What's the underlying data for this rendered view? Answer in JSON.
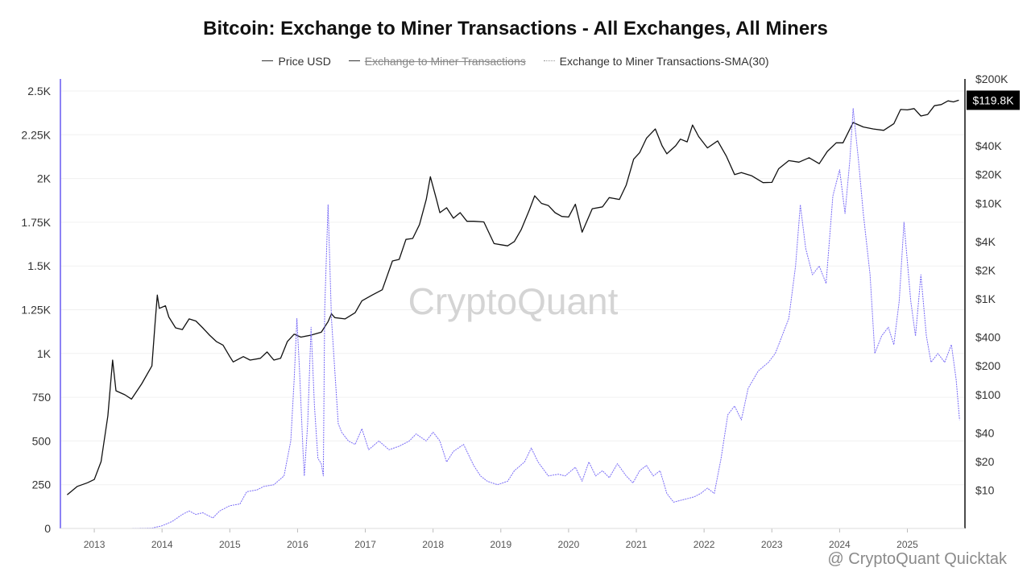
{
  "chart_data": {
    "type": "line",
    "title": "Bitcoin: Exchange to Miner Transactions - All Exchanges, All Miners",
    "legend_position": "top-center",
    "grid": true,
    "series": [
      {
        "name": "Price USD",
        "axis": "right",
        "color": "#111111",
        "visible": true,
        "points": [
          [
            2012.6,
            9
          ],
          [
            2012.75,
            11
          ],
          [
            2012.9,
            12
          ],
          [
            2013.0,
            13
          ],
          [
            2013.1,
            20
          ],
          [
            2013.2,
            60
          ],
          [
            2013.27,
            230
          ],
          [
            2013.32,
            110
          ],
          [
            2013.45,
            100
          ],
          [
            2013.55,
            90
          ],
          [
            2013.7,
            130
          ],
          [
            2013.85,
            200
          ],
          [
            2013.9,
            600
          ],
          [
            2013.93,
            1100
          ],
          [
            2013.96,
            800
          ],
          [
            2014.05,
            850
          ],
          [
            2014.1,
            650
          ],
          [
            2014.2,
            500
          ],
          [
            2014.3,
            480
          ],
          [
            2014.4,
            620
          ],
          [
            2014.5,
            590
          ],
          [
            2014.6,
            500
          ],
          [
            2014.7,
            420
          ],
          [
            2014.8,
            360
          ],
          [
            2014.9,
            330
          ],
          [
            2015.0,
            250
          ],
          [
            2015.05,
            220
          ],
          [
            2015.2,
            250
          ],
          [
            2015.3,
            230
          ],
          [
            2015.45,
            240
          ],
          [
            2015.55,
            280
          ],
          [
            2015.65,
            230
          ],
          [
            2015.75,
            240
          ],
          [
            2015.85,
            360
          ],
          [
            2015.95,
            430
          ],
          [
            2016.05,
            400
          ],
          [
            2016.2,
            420
          ],
          [
            2016.35,
            450
          ],
          [
            2016.45,
            580
          ],
          [
            2016.5,
            700
          ],
          [
            2016.55,
            640
          ],
          [
            2016.7,
            620
          ],
          [
            2016.85,
            720
          ],
          [
            2016.95,
            960
          ],
          [
            2017.1,
            1100
          ],
          [
            2017.25,
            1250
          ],
          [
            2017.4,
            2500
          ],
          [
            2017.5,
            2600
          ],
          [
            2017.6,
            4200
          ],
          [
            2017.7,
            4300
          ],
          [
            2017.8,
            6000
          ],
          [
            2017.9,
            11000
          ],
          [
            2017.96,
            19000
          ],
          [
            2018.05,
            11000
          ],
          [
            2018.1,
            8000
          ],
          [
            2018.2,
            9000
          ],
          [
            2018.3,
            7000
          ],
          [
            2018.4,
            8000
          ],
          [
            2018.5,
            6500
          ],
          [
            2018.6,
            6500
          ],
          [
            2018.75,
            6400
          ],
          [
            2018.9,
            3800
          ],
          [
            2019.0,
            3700
          ],
          [
            2019.1,
            3600
          ],
          [
            2019.2,
            4000
          ],
          [
            2019.3,
            5300
          ],
          [
            2019.42,
            8500
          ],
          [
            2019.5,
            12000
          ],
          [
            2019.6,
            10000
          ],
          [
            2019.7,
            9500
          ],
          [
            2019.8,
            8000
          ],
          [
            2019.9,
            7300
          ],
          [
            2020.0,
            7200
          ],
          [
            2020.1,
            9800
          ],
          [
            2020.2,
            5000
          ],
          [
            2020.35,
            8800
          ],
          [
            2020.5,
            9200
          ],
          [
            2020.6,
            11500
          ],
          [
            2020.75,
            11000
          ],
          [
            2020.85,
            15500
          ],
          [
            2020.96,
            29000
          ],
          [
            2021.05,
            34000
          ],
          [
            2021.15,
            48000
          ],
          [
            2021.28,
            60000
          ],
          [
            2021.38,
            40000
          ],
          [
            2021.45,
            33000
          ],
          [
            2021.58,
            40000
          ],
          [
            2021.65,
            47000
          ],
          [
            2021.75,
            44000
          ],
          [
            2021.83,
            66000
          ],
          [
            2021.92,
            50000
          ],
          [
            2022.05,
            38000
          ],
          [
            2022.2,
            45000
          ],
          [
            2022.33,
            31000
          ],
          [
            2022.45,
            20000
          ],
          [
            2022.55,
            21000
          ],
          [
            2022.7,
            19500
          ],
          [
            2022.87,
            16500
          ],
          [
            2023.0,
            16600
          ],
          [
            2023.1,
            23000
          ],
          [
            2023.25,
            28000
          ],
          [
            2023.4,
            27000
          ],
          [
            2023.55,
            30000
          ],
          [
            2023.7,
            26000
          ],
          [
            2023.82,
            35000
          ],
          [
            2023.95,
            43000
          ],
          [
            2024.05,
            43000
          ],
          [
            2024.2,
            70000
          ],
          [
            2024.35,
            63000
          ],
          [
            2024.5,
            60000
          ],
          [
            2024.65,
            58000
          ],
          [
            2024.8,
            68000
          ],
          [
            2024.9,
            96000
          ],
          [
            2025.0,
            95000
          ],
          [
            2025.1,
            98000
          ],
          [
            2025.2,
            82000
          ],
          [
            2025.3,
            85000
          ],
          [
            2025.4,
            105000
          ],
          [
            2025.5,
            108000
          ],
          [
            2025.6,
            118000
          ],
          [
            2025.68,
            115000
          ],
          [
            2025.76,
            119800
          ]
        ]
      },
      {
        "name": "Exchange to Miner Transactions",
        "axis": "left",
        "color": "#444444",
        "visible": false,
        "points": []
      },
      {
        "name": "Exchange to Miner Transactions-SMA(30)",
        "axis": "left",
        "color": "#7b6ef6",
        "visible": true,
        "points": [
          [
            2012.6,
            0
          ],
          [
            2013.0,
            0
          ],
          [
            2013.5,
            0
          ],
          [
            2013.85,
            2
          ],
          [
            2014.0,
            15
          ],
          [
            2014.15,
            40
          ],
          [
            2014.3,
            80
          ],
          [
            2014.4,
            100
          ],
          [
            2014.5,
            80
          ],
          [
            2014.6,
            90
          ],
          [
            2014.75,
            60
          ],
          [
            2014.85,
            100
          ],
          [
            2015.0,
            130
          ],
          [
            2015.15,
            140
          ],
          [
            2015.25,
            210
          ],
          [
            2015.4,
            220
          ],
          [
            2015.5,
            240
          ],
          [
            2015.65,
            250
          ],
          [
            2015.8,
            300
          ],
          [
            2015.9,
            500
          ],
          [
            2015.95,
            850
          ],
          [
            2015.99,
            1200
          ],
          [
            2016.03,
            900
          ],
          [
            2016.08,
            450
          ],
          [
            2016.1,
            300
          ],
          [
            2016.15,
            600
          ],
          [
            2016.2,
            1150
          ],
          [
            2016.25,
            700
          ],
          [
            2016.3,
            400
          ],
          [
            2016.35,
            370
          ],
          [
            2016.38,
            300
          ],
          [
            2016.4,
            1250
          ],
          [
            2016.45,
            1850
          ],
          [
            2016.5,
            1200
          ],
          [
            2016.55,
            900
          ],
          [
            2016.6,
            600
          ],
          [
            2016.65,
            550
          ],
          [
            2016.75,
            500
          ],
          [
            2016.85,
            480
          ],
          [
            2016.95,
            570
          ],
          [
            2017.05,
            450
          ],
          [
            2017.2,
            500
          ],
          [
            2017.35,
            450
          ],
          [
            2017.5,
            470
          ],
          [
            2017.65,
            500
          ],
          [
            2017.75,
            540
          ],
          [
            2017.9,
            500
          ],
          [
            2018.0,
            550
          ],
          [
            2018.1,
            500
          ],
          [
            2018.2,
            380
          ],
          [
            2018.3,
            440
          ],
          [
            2018.45,
            480
          ],
          [
            2018.6,
            360
          ],
          [
            2018.7,
            300
          ],
          [
            2018.8,
            270
          ],
          [
            2018.95,
            250
          ],
          [
            2019.1,
            270
          ],
          [
            2019.2,
            330
          ],
          [
            2019.35,
            380
          ],
          [
            2019.45,
            460
          ],
          [
            2019.55,
            380
          ],
          [
            2019.7,
            300
          ],
          [
            2019.85,
            310
          ],
          [
            2019.95,
            300
          ],
          [
            2020.1,
            350
          ],
          [
            2020.2,
            270
          ],
          [
            2020.3,
            380
          ],
          [
            2020.4,
            300
          ],
          [
            2020.5,
            330
          ],
          [
            2020.6,
            290
          ],
          [
            2020.72,
            370
          ],
          [
            2020.85,
            300
          ],
          [
            2020.95,
            260
          ],
          [
            2021.05,
            330
          ],
          [
            2021.15,
            360
          ],
          [
            2021.25,
            300
          ],
          [
            2021.35,
            330
          ],
          [
            2021.45,
            200
          ],
          [
            2021.55,
            150
          ],
          [
            2021.65,
            160
          ],
          [
            2021.75,
            170
          ],
          [
            2021.85,
            180
          ],
          [
            2021.95,
            200
          ],
          [
            2022.05,
            230
          ],
          [
            2022.15,
            200
          ],
          [
            2022.25,
            400
          ],
          [
            2022.35,
            650
          ],
          [
            2022.45,
            700
          ],
          [
            2022.55,
            620
          ],
          [
            2022.65,
            800
          ],
          [
            2022.8,
            900
          ],
          [
            2022.95,
            950
          ],
          [
            2023.05,
            1000
          ],
          [
            2023.15,
            1100
          ],
          [
            2023.25,
            1200
          ],
          [
            2023.35,
            1500
          ],
          [
            2023.42,
            1850
          ],
          [
            2023.5,
            1600
          ],
          [
            2023.6,
            1450
          ],
          [
            2023.7,
            1500
          ],
          [
            2023.8,
            1400
          ],
          [
            2023.9,
            1900
          ],
          [
            2024.0,
            2050
          ],
          [
            2024.08,
            1800
          ],
          [
            2024.15,
            2100
          ],
          [
            2024.2,
            2400
          ],
          [
            2024.28,
            2100
          ],
          [
            2024.35,
            1800
          ],
          [
            2024.45,
            1450
          ],
          [
            2024.52,
            1000
          ],
          [
            2024.62,
            1100
          ],
          [
            2024.72,
            1150
          ],
          [
            2024.8,
            1050
          ],
          [
            2024.88,
            1300
          ],
          [
            2024.95,
            1750
          ],
          [
            2025.05,
            1300
          ],
          [
            2025.12,
            1100
          ],
          [
            2025.2,
            1450
          ],
          [
            2025.28,
            1100
          ],
          [
            2025.35,
            950
          ],
          [
            2025.45,
            1000
          ],
          [
            2025.55,
            950
          ],
          [
            2025.65,
            1050
          ],
          [
            2025.72,
            850
          ],
          [
            2025.77,
            620
          ]
        ]
      }
    ],
    "x_axis": {
      "min": 2012.5,
      "max": 2025.85,
      "ticks": [
        {
          "value": 2013,
          "label": "2013"
        },
        {
          "value": 2014,
          "label": "2014"
        },
        {
          "value": 2015,
          "label": "2015"
        },
        {
          "value": 2016,
          "label": "2016"
        },
        {
          "value": 2017,
          "label": "2017"
        },
        {
          "value": 2018,
          "label": "2018"
        },
        {
          "value": 2019,
          "label": "2019"
        },
        {
          "value": 2020,
          "label": "2020"
        },
        {
          "value": 2021,
          "label": "2021"
        },
        {
          "value": 2022,
          "label": "2022"
        },
        {
          "value": 2023,
          "label": "2023"
        },
        {
          "value": 2024,
          "label": "2024"
        },
        {
          "value": 2025,
          "label": "2025"
        }
      ]
    },
    "y_left": {
      "min": 0,
      "max": 2500,
      "scale": "linear",
      "ticks": [
        {
          "value": 0,
          "label": "0"
        },
        {
          "value": 250,
          "label": "250"
        },
        {
          "value": 500,
          "label": "500"
        },
        {
          "value": 750,
          "label": "750"
        },
        {
          "value": 1000,
          "label": "1K"
        },
        {
          "value": 1250,
          "label": "1.25K"
        },
        {
          "value": 1500,
          "label": "1.5K"
        },
        {
          "value": 1750,
          "label": "1.75K"
        },
        {
          "value": 2000,
          "label": "2K"
        },
        {
          "value": 2250,
          "label": "2.25K"
        },
        {
          "value": 2500,
          "label": "2.5K"
        }
      ]
    },
    "y_right": {
      "scale": "log",
      "min": 4,
      "max": 200000,
      "ticks": [
        {
          "value": 200000,
          "label": "$200K"
        },
        {
          "value": 40000,
          "label": "$40K"
        },
        {
          "value": 20000,
          "label": "$20K"
        },
        {
          "value": 10000,
          "label": "$10K"
        },
        {
          "value": 4000,
          "label": "$4K"
        },
        {
          "value": 2000,
          "label": "$2K"
        },
        {
          "value": 1000,
          "label": "$1K"
        },
        {
          "value": 400,
          "label": "$400"
        },
        {
          "value": 200,
          "label": "$200"
        },
        {
          "value": 100,
          "label": "$100"
        },
        {
          "value": 40,
          "label": "$40"
        },
        {
          "value": 20,
          "label": "$20"
        },
        {
          "value": 10,
          "label": "$10"
        }
      ],
      "current_value_label": "$119.8K",
      "current_value": 119800
    },
    "watermark": "CryptoQuant",
    "footer_mark": "@ CryptoQuant Quicktak"
  }
}
